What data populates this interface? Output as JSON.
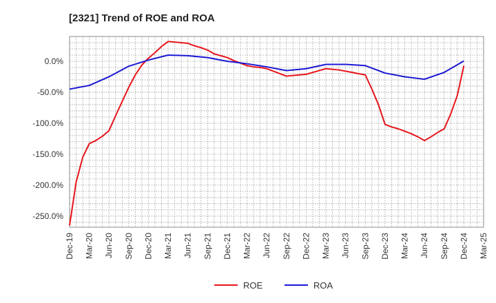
{
  "chart_data": {
    "type": "line",
    "title": "[2321]  Trend of ROE and ROA",
    "xlabel": "",
    "ylabel": "",
    "x_ticks": [
      "Dec-19",
      "Mar-20",
      "Jun-20",
      "Sep-20",
      "Dec-20",
      "Mar-21",
      "Jun-21",
      "Sep-21",
      "Dec-21",
      "Mar-22",
      "Jun-22",
      "Sep-22",
      "Dec-22",
      "Mar-23",
      "Jun-23",
      "Sep-23",
      "Dec-23",
      "Mar-24",
      "Jun-24",
      "Sep-24",
      "Dec-24",
      "Mar-25"
    ],
    "y_ticks": [
      0,
      -50,
      -100,
      -150,
      -200,
      -250
    ],
    "y_tick_labels": [
      "0.0%",
      "-50.0%",
      "-100.0%",
      "-150.0%",
      "-200.0%",
      "-250.0%"
    ],
    "ylim": [
      -268,
      40
    ],
    "grid": true,
    "legend_position": "bottom-center",
    "series": [
      {
        "name": "ROE",
        "color": "#e8141b",
        "x": [
          "Dec-19",
          "Jan-20",
          "Feb-20",
          "Mar-20",
          "Apr-20",
          "May-20",
          "Jun-20",
          "Jul-20",
          "Aug-20",
          "Sep-20",
          "Oct-20",
          "Nov-20",
          "Dec-20",
          "Jan-21",
          "Feb-21",
          "Mar-21",
          "Apr-21",
          "May-21",
          "Jun-21",
          "Jul-21",
          "Aug-21",
          "Sep-21",
          "Oct-21",
          "Nov-21",
          "Dec-21",
          "Jan-22",
          "Feb-22",
          "Mar-22",
          "Apr-22",
          "May-22",
          "Jun-22",
          "Jul-22",
          "Aug-22",
          "Sep-22",
          "Oct-22",
          "Nov-22",
          "Dec-22",
          "Jan-23",
          "Feb-23",
          "Mar-23",
          "Apr-23",
          "May-23",
          "Jun-23",
          "Jul-23",
          "Aug-23",
          "Sep-23",
          "Oct-23",
          "Nov-23",
          "Dec-23",
          "Jan-24",
          "Feb-24",
          "Mar-24",
          "Apr-24",
          "May-24",
          "Jun-24",
          "Jul-24",
          "Aug-24",
          "Sep-24",
          "Oct-24",
          "Nov-24",
          "Dec-24"
        ],
        "values": [
          -265,
          -195,
          -155,
          -133,
          -128,
          -121,
          -112,
          -88,
          -65,
          -42,
          -22,
          -6,
          5,
          14,
          24,
          32,
          31,
          30,
          29,
          25,
          22,
          18,
          12,
          9,
          6,
          1,
          -3,
          -7,
          -9,
          -10,
          -12,
          -16,
          -20,
          -24,
          -23,
          -22,
          -21,
          -18,
          -15,
          -12,
          -13,
          -14,
          -16,
          -18,
          -20,
          -22,
          -45,
          -70,
          -102,
          -106,
          -109,
          -113,
          -117,
          -122,
          -128,
          -122,
          -115,
          -109,
          -85,
          -55,
          -7
        ]
      },
      {
        "name": "ROA",
        "color": "#1a17d4",
        "x": [
          "Dec-19",
          "Mar-20",
          "Jun-20",
          "Sep-20",
          "Dec-20",
          "Mar-21",
          "Jun-21",
          "Sep-21",
          "Dec-21",
          "Mar-22",
          "Jun-22",
          "Sep-22",
          "Dec-22",
          "Mar-23",
          "Jun-23",
          "Sep-23",
          "Dec-23",
          "Mar-24",
          "Jun-24",
          "Sep-24",
          "Dec-24"
        ],
        "values": [
          -45,
          -39,
          -25,
          -8,
          2,
          10,
          9,
          6,
          0,
          -4,
          -9,
          -15,
          -12,
          -5,
          -5,
          -7,
          -19,
          -25,
          -29,
          -18,
          0.5
        ]
      }
    ]
  }
}
